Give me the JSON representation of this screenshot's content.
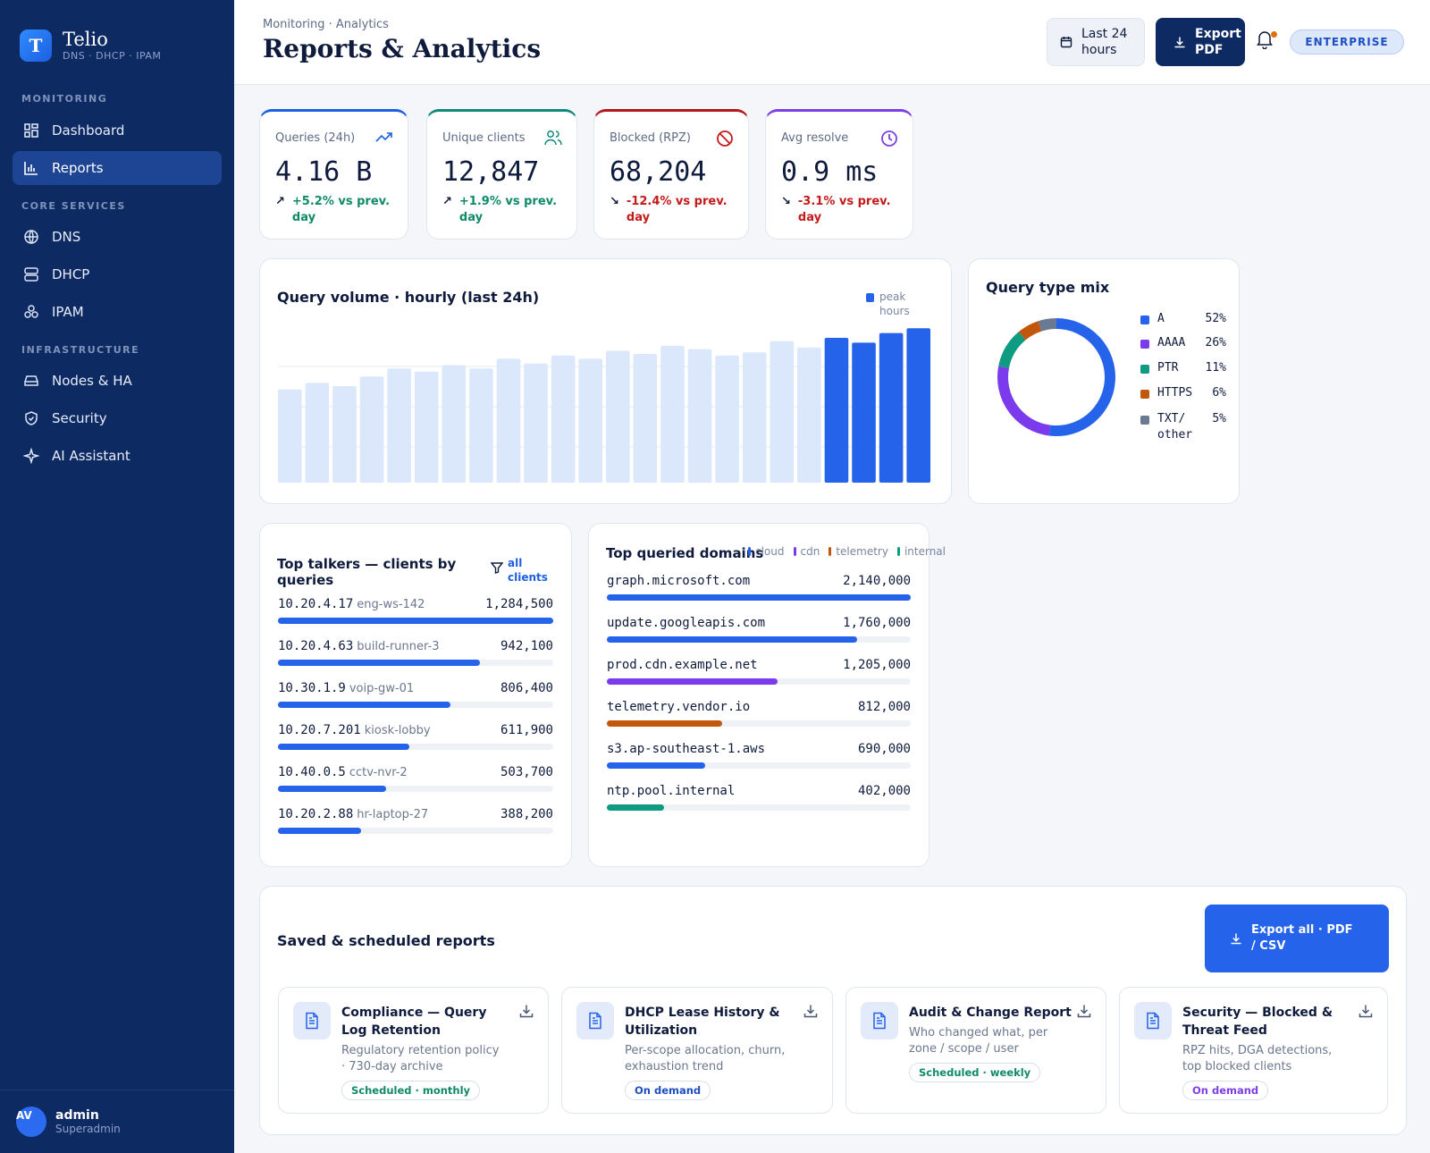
{
  "app": {
    "name": "Telio",
    "subtitle": "DNS · DHCP · IPAM"
  },
  "sidebar": {
    "sections": [
      {
        "title": "MONITORING"
      },
      {
        "title": "CORE SERVICES"
      },
      {
        "title": "INFRASTRUCTURE"
      }
    ],
    "items": [
      {
        "label": "Dashboard",
        "icon": "dashboard-icon"
      },
      {
        "label": "Reports",
        "icon": "bar-chart-icon",
        "active": true
      },
      {
        "label": "DNS",
        "icon": "globe-icon"
      },
      {
        "label": "DHCP",
        "icon": "server-icon"
      },
      {
        "label": "IPAM",
        "icon": "network-icon"
      },
      {
        "label": "Nodes & HA",
        "icon": "hard-drive-icon"
      },
      {
        "label": "Security",
        "icon": "shield-icon"
      },
      {
        "label": "AI Assistant",
        "icon": "sparkle-icon"
      }
    ],
    "user": {
      "initials": "AV",
      "name": "admin",
      "role": "Superadmin"
    }
  },
  "header": {
    "breadcrumb": "Monitoring · Analytics",
    "title": "Reports & Analytics",
    "range_label": "Last 24 hours",
    "export_label": "Export PDF",
    "plan_badge": "ENTERPRISE"
  },
  "kpis": [
    {
      "label": "Queries (24h)",
      "value": "4.16 B",
      "delta": "+5.2% vs prev. day",
      "trend": "up",
      "color": "#1d5fe0"
    },
    {
      "label": "Unique clients",
      "value": "12,847",
      "delta": "+1.9% vs prev. day",
      "trend": "up",
      "color": "#0f8a7a"
    },
    {
      "label": "Blocked (RPZ)",
      "value": "68,204",
      "delta": "-12.4% vs prev. day",
      "trend": "down",
      "color": "#b3161c"
    },
    {
      "label": "Avg resolve",
      "value": "0.9 ms",
      "delta": "-3.1% vs prev. day",
      "trend": "down",
      "color": "#7b3fe4"
    }
  ],
  "volume": {
    "title": "Query volume · hourly (last 24h)",
    "legend": "peak hours",
    "accent": "#2563eb",
    "muted": "#dbe7fb"
  },
  "mix": {
    "title": "Query type mix"
  },
  "chart_data": [
    {
      "type": "bar",
      "title": "Query volume · hourly (last 24h)",
      "series": [
        {
          "name": "peak hours",
          "values": [
            0.58,
            0.62,
            0.6,
            0.66,
            0.71,
            0.69,
            0.73,
            0.71,
            0.77,
            0.74,
            0.79,
            0.77,
            0.82,
            0.8,
            0.85,
            0.83,
            0.79,
            0.81,
            0.88,
            0.84,
            0.9,
            0.87,
            0.93,
            0.96
          ]
        }
      ],
      "peak_from_index": 20,
      "grid": true
    },
    {
      "type": "pie",
      "title": "Query type mix",
      "labels": [
        "A",
        "AAAA",
        "PTR",
        "HTTPS",
        "TXT/ other"
      ],
      "values": [
        52,
        26,
        11,
        6,
        5
      ],
      "value_labels": [
        "52%",
        "26%",
        "11%",
        "6%",
        "5%"
      ],
      "colors": [
        "#2563eb",
        "#7c3aed",
        "#0f9a82",
        "#c2570c",
        "#6b7a93"
      ]
    },
    {
      "type": "bar",
      "title": "Top talkers — clients by queries",
      "categories": [
        "10.20.4.17",
        "10.20.4.63",
        "10.30.1.9",
        "10.20.7.201",
        "10.40.0.5",
        "10.20.2.88"
      ],
      "hosts": [
        "eng-ws-142",
        "build-runner-3",
        "voip-gw-01",
        "kiosk-lobby",
        "cctv-nvr-2",
        "hr-laptop-27"
      ],
      "values": [
        1284500,
        942100,
        806400,
        611900,
        503700,
        388200
      ],
      "value_labels": [
        "1,284,500",
        "942,100",
        "806,400",
        "611,900",
        "503,700",
        "388,200"
      ]
    },
    {
      "type": "bar",
      "title": "Top queried domains",
      "categories": [
        "graph.microsoft.com",
        "update.googleapis.com",
        "prod.cdn.example.net",
        "telemetry.vendor.io",
        "s3.ap-southeast-1.aws",
        "ntp.pool.internal"
      ],
      "values": [
        2140000,
        1760000,
        1205000,
        812000,
        690000,
        402000
      ],
      "value_labels": [
        "2,140,000",
        "1,760,000",
        "1,205,000",
        "812,000",
        "690,000",
        "402,000"
      ],
      "series_colors": [
        "#2563eb",
        "#2563eb",
        "#7c3aed",
        "#c2570c",
        "#2563eb",
        "#0f9a82"
      ],
      "legend": [
        "cloud",
        "cdn",
        "telemetry",
        "internal"
      ]
    }
  ],
  "talkers": {
    "title": "Top talkers — clients by queries",
    "filter_label": "all clients"
  },
  "domains": {
    "title": "Top queried domains",
    "legend": [
      {
        "label": "cloud",
        "color": "#2563eb"
      },
      {
        "label": "cdn",
        "color": "#7c3aed"
      },
      {
        "label": "telemetry",
        "color": "#c2570c"
      },
      {
        "label": "internal",
        "color": "#0f9a82"
      }
    ]
  },
  "reports": {
    "title": "Saved & scheduled reports",
    "export_all": "Export all · PDF / CSV",
    "items": [
      {
        "title": "Compliance — Query Log Retention",
        "desc": "Regulatory retention policy · 730-day archive",
        "tag": "Scheduled · monthly"
      },
      {
        "title": "DHCP Lease History & Utilization",
        "desc": "Per-scope allocation, churn, exhaustion trend",
        "tag": "On demand"
      },
      {
        "title": "Audit & Change Report",
        "desc": "Who changed what, per zone / scope / user",
        "tag": "Scheduled · weekly"
      },
      {
        "title": "Security — Blocked & Threat Feed",
        "desc": "RPZ hits, DGA detections, top blocked clients",
        "tag": "On demand"
      }
    ]
  }
}
